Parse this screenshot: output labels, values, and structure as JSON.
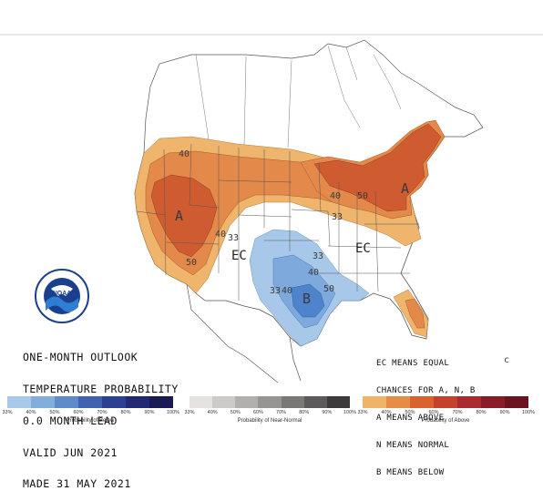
{
  "title_lines": [
    "ONE-MONTH OUTLOOK",
    "TEMPERATURE PROBABILITY",
    "0.0 MONTH LEAD",
    "VALID JUN 2021",
    "MADE 31 MAY 2021"
  ],
  "legend_lines": [
    "EC MEANS EQUAL",
    "CHANCES FOR A, N, B",
    "A MEANS ABOVE",
    "N MEANS NORMAL",
    "B MEANS BELOW"
  ],
  "map_labels": {
    "region_above_west": "A",
    "region_above_east": "A",
    "region_below": "B",
    "ec_central": "EC",
    "ec_east": "EC",
    "contour_40_nw": "40",
    "contour_50_sw": "50",
    "contour_40_rockies": "40",
    "contour_33_rockies": "33",
    "contour_40_lakes": "40",
    "contour_50_lakes": "50",
    "contour_33_midwest": "33",
    "contour_33_south": "33",
    "contour_40_south": "40",
    "contour_50_south": "50",
    "contour_40_texas": "40",
    "contour_33_texas": "33",
    "corner_mark": "c"
  },
  "logo_text": "NOAA",
  "legends": {
    "below": {
      "caption": "Probability of Below",
      "ticks": [
        "33%",
        "40%",
        "50%",
        "60%",
        "70%",
        "80%",
        "90%",
        "100%"
      ],
      "colors": [
        "#a9c9e8",
        "#82aedb",
        "#5e8ccb",
        "#3f63b1",
        "#2d3f92",
        "#222a73",
        "#1a1a55"
      ]
    },
    "normal": {
      "caption": "Probability of Near-Normal",
      "ticks": [
        "33%",
        "40%",
        "50%",
        "60%",
        "70%",
        "80%",
        "90%",
        "100%"
      ],
      "colors": [
        "#e6e2e2",
        "#cdcaca",
        "#b2afaf",
        "#979494",
        "#7a7777",
        "#5c5a5a",
        "#3c3a3a"
      ]
    },
    "above": {
      "caption": "Probability of Above",
      "ticks": [
        "33%",
        "40%",
        "50%",
        "60%",
        "70%",
        "80%",
        "90%",
        "100%"
      ],
      "colors": [
        "#efb46a",
        "#e58c45",
        "#d9622e",
        "#c5412d",
        "#aa2a2f",
        "#8a1c2a",
        "#6c1322"
      ]
    }
  },
  "colors": {
    "above_33": "#efb56d",
    "above_40": "#e3894a",
    "above_50": "#cf5b30",
    "below_33": "#a8c8ea",
    "below_40": "#7ea9dd",
    "below_50": "#4f83cc"
  }
}
